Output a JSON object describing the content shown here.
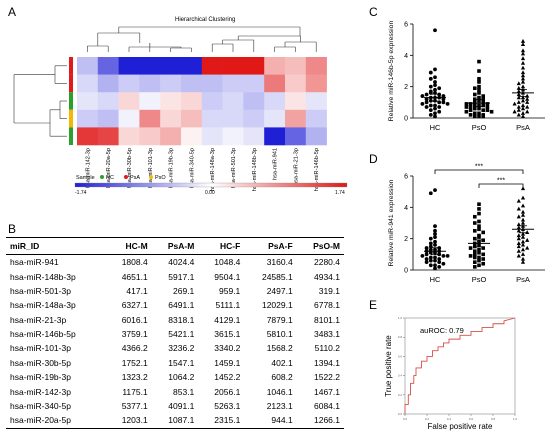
{
  "panels": {
    "a": "A",
    "b": "B",
    "c": "C",
    "d": "D",
    "e": "E"
  },
  "heatmap": {
    "title": "Hierarchical Clustering",
    "legend_title": "Sample",
    "legend_items": [
      {
        "label": "HC",
        "color": "#2ca02c"
      },
      {
        "label": "PsA",
        "color": "#e31a1c"
      },
      {
        "label": "PsO",
        "color": "#f5b800"
      }
    ],
    "scale_min": "-1.74",
    "scale_mid": "0.00",
    "scale_max": "1.74",
    "row_groups": [
      "#e31a1c",
      "#e31a1c",
      "#2ca02c",
      "#f5b800",
      "#2ca02c"
    ],
    "columns": [
      "hsa-miR-142-3p",
      "hsa-miR-20a-5p",
      "hsa-miR-30b-5p",
      "hsa-miR-101-3p",
      "hsa-miR-19b-3p",
      "hsa-miR-340-5p",
      "hsa-miR-148a-3p",
      "hsa-miR-501-3p",
      "hsa-miR-148b-3p",
      "hsa-miR-941",
      "hsa-miR-21-3p",
      "hsa-miR-146b-5p"
    ],
    "matrix": [
      [
        -0.5,
        -1.2,
        -1.74,
        -1.74,
        -1.74,
        -1.74,
        1.74,
        1.74,
        1.74,
        0.6,
        0.5,
        0.9
      ],
      [
        -0.3,
        -0.6,
        -0.4,
        -0.5,
        -0.4,
        -0.5,
        -0.5,
        -0.4,
        -0.4,
        1.0,
        0.4,
        0.8
      ],
      [
        -0.2,
        -0.3,
        0.3,
        -0.1,
        0.2,
        0.3,
        -0.4,
        -0.3,
        -0.5,
        -0.3,
        0.2,
        -0.2
      ],
      [
        -0.4,
        -0.5,
        -0.1,
        0.9,
        0.3,
        0.5,
        -0.3,
        -0.3,
        -0.4,
        -0.2,
        0.7,
        -0.4
      ],
      [
        1.5,
        1.4,
        0.3,
        0.4,
        0.6,
        0.1,
        -0.2,
        -0.1,
        -0.2,
        -1.74,
        -1.2,
        -0.6
      ]
    ]
  },
  "table": {
    "headers": [
      "miR_ID",
      "HC-M",
      "PsA-M",
      "HC-F",
      "PsA-F",
      "PsO-M"
    ],
    "rows": [
      [
        "hsa-miR-941",
        "1808.4",
        "4024.4",
        "1048.4",
        "3160.4",
        "2280.4"
      ],
      [
        "hsa-miR-148b-3p",
        "4651.1",
        "5917.1",
        "9504.1",
        "24585.1",
        "4934.1"
      ],
      [
        "hsa-miR-501-3p",
        "417.1",
        "269.1",
        "959.1",
        "2497.1",
        "319.1"
      ],
      [
        "hsa-miR-148a-3p",
        "6327.1",
        "6491.1",
        "5111.1",
        "12029.1",
        "6778.1"
      ],
      [
        "hsa-miR-21-3p",
        "6016.1",
        "8318.1",
        "4129.1",
        "7879.1",
        "8101.1"
      ],
      [
        "hsa-miR-146b-5p",
        "3759.1",
        "5421.1",
        "3615.1",
        "5810.1",
        "3483.1"
      ],
      [
        "hsa-miR-101-3p",
        "4366.2",
        "3236.2",
        "3340.2",
        "1568.2",
        "5110.2"
      ],
      [
        "hsa-miR-30b-5p",
        "1752.1",
        "1547.1",
        "1459.1",
        "402.1",
        "1394.1"
      ],
      [
        "hsa-miR-19b-3p",
        "1323.2",
        "1064.2",
        "1452.2",
        "608.2",
        "1522.2"
      ],
      [
        "hsa-miR-142-3p",
        "1175.1",
        "853.1",
        "2056.1",
        "1046.1",
        "1467.1"
      ],
      [
        "hsa-miR-340-5p",
        "5377.1",
        "4091.1",
        "5263.1",
        "2123.1",
        "6084.1"
      ],
      [
        "hsa-miR-20a-5p",
        "1203.1",
        "1087.1",
        "2315.1",
        "944.1",
        "1266.1"
      ]
    ]
  },
  "chart_data": [
    {
      "type": "scatter",
      "title": "",
      "xlabel": "",
      "ylabel": "Relative miR-146b-5p expression",
      "categories": [
        "HC",
        "PsO",
        "PsA"
      ],
      "ylim": [
        0,
        6
      ],
      "yticks": [
        "0",
        "2",
        "4",
        "6"
      ],
      "means": [
        1.3,
        0.95,
        1.6
      ],
      "series": [
        {
          "marker": "circle",
          "values": [
            5.6,
            3.1,
            2.9,
            2.6,
            2.5,
            2.3,
            2.1,
            2.0,
            1.9,
            1.8,
            1.7,
            1.6,
            1.6,
            1.5,
            1.5,
            1.4,
            1.4,
            1.3,
            1.3,
            1.3,
            1.2,
            1.2,
            1.1,
            1.1,
            1.0,
            1.0,
            1.0,
            0.9,
            0.9,
            0.8,
            0.8,
            0.7,
            0.7,
            0.6,
            0.5,
            0.4,
            0.3,
            0.2,
            0.1
          ]
        },
        {
          "marker": "square",
          "values": [
            3.6,
            3.0,
            2.5,
            2.3,
            2.0,
            1.9,
            1.8,
            1.6,
            1.5,
            1.4,
            1.3,
            1.2,
            1.2,
            1.1,
            1.0,
            1.0,
            0.9,
            0.9,
            0.9,
            0.8,
            0.8,
            0.8,
            0.7,
            0.7,
            0.7,
            0.6,
            0.6,
            0.5,
            0.5,
            0.5,
            0.4,
            0.4,
            0.3,
            0.3,
            0.2,
            0.2,
            0.1,
            0.1,
            0.1
          ]
        },
        {
          "marker": "triangle",
          "values": [
            4.9,
            4.7,
            4.3,
            4.1,
            3.8,
            3.5,
            3.2,
            2.9,
            2.7,
            2.5,
            2.3,
            2.2,
            2.0,
            1.9,
            1.8,
            1.7,
            1.6,
            1.5,
            1.4,
            1.3,
            1.3,
            1.2,
            1.1,
            1.0,
            1.0,
            0.9,
            0.8,
            0.7,
            0.7,
            0.6,
            0.5,
            0.4,
            0.4,
            0.3,
            0.2,
            0.1
          ]
        }
      ]
    },
    {
      "type": "scatter",
      "title": "",
      "xlabel": "",
      "ylabel": "Relative miR-941 expression",
      "categories": [
        "HC",
        "PsO",
        "PsA"
      ],
      "ylim": [
        0,
        6
      ],
      "yticks": [
        "0",
        "2",
        "4",
        "6"
      ],
      "means": [
        1.2,
        1.7,
        2.6
      ],
      "significance": [
        {
          "from": "HC",
          "to": "PsA",
          "label": "***"
        },
        {
          "from": "PsO",
          "to": "PsA",
          "label": "***"
        }
      ],
      "series": [
        {
          "marker": "circle",
          "values": [
            5.1,
            4.9,
            2.8,
            2.5,
            2.3,
            2.1,
            2.0,
            1.8,
            1.7,
            1.6,
            1.5,
            1.4,
            1.4,
            1.3,
            1.3,
            1.2,
            1.2,
            1.1,
            1.1,
            1.0,
            1.0,
            0.9,
            0.9,
            0.9,
            0.8,
            0.8,
            0.7,
            0.7,
            0.6,
            0.6,
            0.5,
            0.5,
            0.4,
            0.3,
            0.3,
            0.2,
            0.1
          ]
        },
        {
          "marker": "square",
          "values": [
            4.2,
            3.9,
            3.6,
            3.4,
            3.1,
            3.0,
            2.8,
            2.6,
            2.5,
            2.4,
            2.2,
            2.1,
            2.0,
            1.9,
            1.8,
            1.7,
            1.6,
            1.5,
            1.4,
            1.4,
            1.3,
            1.2,
            1.1,
            1.0,
            1.0,
            0.9,
            0.8,
            0.8,
            0.7,
            0.6,
            0.5,
            0.4,
            0.3,
            0.2
          ]
        },
        {
          "marker": "triangle",
          "values": [
            5.2,
            4.6,
            4.4,
            4.1,
            3.9,
            3.7,
            3.5,
            3.4,
            3.2,
            3.0,
            2.9,
            2.8,
            2.7,
            2.6,
            2.5,
            2.4,
            2.3,
            2.2,
            2.1,
            2.0,
            1.9,
            1.8,
            1.7,
            1.6,
            1.5,
            1.4,
            1.3,
            1.2,
            1.0,
            0.9,
            0.7,
            0.5
          ]
        }
      ]
    },
    {
      "type": "line",
      "title": "",
      "xlabel": "False positive rate",
      "ylabel": "True positive rate",
      "annotation": "auROC: 0.79",
      "xlim": [
        0,
        1
      ],
      "ylim": [
        0,
        1
      ],
      "xticks": [
        "0.0",
        "0.2",
        "0.4",
        "0.6",
        "0.8",
        "1.0"
      ],
      "yticks": [
        "0.0",
        "0.2",
        "0.4",
        "0.6",
        "0.8",
        "1.0"
      ],
      "x": [
        0.0,
        0.0,
        0.03,
        0.03,
        0.05,
        0.05,
        0.08,
        0.08,
        0.1,
        0.1,
        0.15,
        0.15,
        0.2,
        0.2,
        0.25,
        0.25,
        0.3,
        0.3,
        0.35,
        0.35,
        0.4,
        0.4,
        0.5,
        0.5,
        0.6,
        0.6,
        0.7,
        0.7,
        0.8,
        0.8,
        0.9,
        0.9,
        1.0
      ],
      "y": [
        0.0,
        0.1,
        0.1,
        0.2,
        0.2,
        0.32,
        0.32,
        0.4,
        0.4,
        0.48,
        0.48,
        0.55,
        0.55,
        0.6,
        0.6,
        0.66,
        0.66,
        0.7,
        0.7,
        0.74,
        0.74,
        0.78,
        0.78,
        0.82,
        0.82,
        0.86,
        0.86,
        0.9,
        0.9,
        0.94,
        0.94,
        0.97,
        1.0
      ]
    }
  ]
}
